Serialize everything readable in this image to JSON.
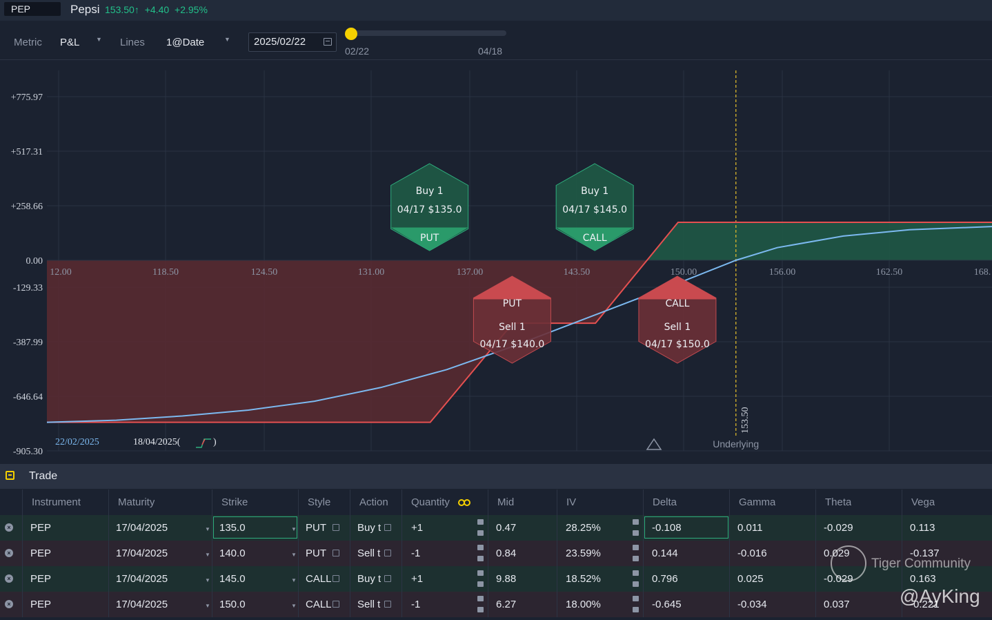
{
  "header": {
    "symbol": "PEP",
    "company": "Pepsi",
    "price": "153.50↑",
    "change": "+4.40",
    "change_pct": "+2.95%",
    "change_color": "#22c08a"
  },
  "controls": {
    "metric_label": "Metric",
    "metric_value": "P&L",
    "lines_label": "Lines",
    "lines_value": "1@Date",
    "date_value": "2025/02/22",
    "slider_start": "02/22",
    "slider_end": "04/18",
    "slider_position_fraction": 0.0,
    "slider_color": "#f5d000"
  },
  "chart_data": {
    "type": "line",
    "y_ticks": [
      "+775.97",
      "+517.31",
      "+258.66",
      "0.00",
      "-129.33",
      "-387.99",
      "-646.64",
      "-905.30"
    ],
    "x_ticks": [
      "12.00",
      "118.50",
      "124.50",
      "131.00",
      "137.00",
      "143.50",
      "150.00",
      "156.00",
      "162.50",
      "168."
    ],
    "xlim": [
      111.8,
      169.0
    ],
    "ylim": [
      -905.3,
      775.97
    ],
    "series": [
      {
        "name": "18/04/2025",
        "color": "#e55050",
        "x": [
          111.8,
          135.0,
          140.0,
          145.0,
          150.0,
          169.0
        ],
        "y": [
          -770,
          -770,
          -300,
          -300,
          180,
          180
        ]
      },
      {
        "name": "22/02/2025",
        "color": "#7cb9f0",
        "x": [
          111.8,
          116,
          120,
          124,
          128,
          132,
          136,
          140,
          144,
          148,
          150,
          153.5,
          156,
          160,
          164,
          169
        ],
        "y": [
          -770,
          -760,
          -740,
          -712,
          -670,
          -605,
          -520,
          -410,
          -290,
          -170,
          -110,
          0,
          60,
          115,
          145,
          160
        ]
      }
    ],
    "underlying_price": 153.5,
    "underlying_label": "153.50",
    "underlying_caption": "Underlying",
    "date_labels": {
      "current": "22/02/2025",
      "expiry": "18/04/2025(",
      "expiry_close": ")"
    },
    "legs": [
      {
        "side": "buy",
        "line1": "Buy 1",
        "line2": "04/17 $135.0",
        "type": "PUT",
        "strike": 135.0
      },
      {
        "side": "buy",
        "line1": "Buy 1",
        "line2": "04/17 $145.0",
        "type": "CALL",
        "strike": 145.0
      },
      {
        "side": "sell",
        "line1": "Sell 1",
        "line2": "04/17 $140.0",
        "type": "PUT",
        "strike": 140.0
      },
      {
        "side": "sell",
        "line1": "Sell 1",
        "line2": "04/17 $150.0",
        "type": "CALL",
        "strike": 150.0
      }
    ],
    "profit_fill": "#1f5a46",
    "loss_fill": "#5a2a30",
    "grid": true
  },
  "trade": {
    "title": "Trade",
    "columns": [
      "Instrument",
      "Maturity",
      "Strike",
      "Style",
      "Action",
      "Quantity",
      "Mid",
      "IV",
      "Delta",
      "Gamma",
      "Theta",
      "Vega"
    ],
    "rows": [
      {
        "side": "buy",
        "instrument": "PEP",
        "maturity": "17/04/2025",
        "strike": "135.0",
        "style": "PUT",
        "action": "Buy t",
        "quantity": "+1",
        "mid": "0.47",
        "iv": "28.25%",
        "delta": "-0.108",
        "gamma": "0.011",
        "theta": "-0.029",
        "vega": "0.113"
      },
      {
        "side": "sell",
        "instrument": "PEP",
        "maturity": "17/04/2025",
        "strike": "140.0",
        "style": "PUT",
        "action": "Sell t",
        "quantity": "-1",
        "mid": "0.84",
        "iv": "23.59%",
        "delta": "0.144",
        "gamma": "-0.016",
        "theta": "0.029",
        "vega": "-0.137"
      },
      {
        "side": "buy",
        "instrument": "PEP",
        "maturity": "17/04/2025",
        "strike": "145.0",
        "style": "CALL",
        "action": "Buy t",
        "quantity": "+1",
        "mid": "9.88",
        "iv": "18.52%",
        "delta": "0.796",
        "gamma": "0.025",
        "theta": "-0.029",
        "vega": "0.163"
      },
      {
        "side": "sell",
        "instrument": "PEP",
        "maturity": "17/04/2025",
        "strike": "150.0",
        "style": "CALL",
        "action": "Sell t",
        "quantity": "-1",
        "mid": "6.27",
        "iv": "18.00%",
        "delta": "-0.645",
        "gamma": "-0.034",
        "theta": "0.037",
        "vega": "-0.221"
      }
    ]
  },
  "watermark": {
    "brand": "Tiger Community",
    "user": "@AyKing"
  }
}
